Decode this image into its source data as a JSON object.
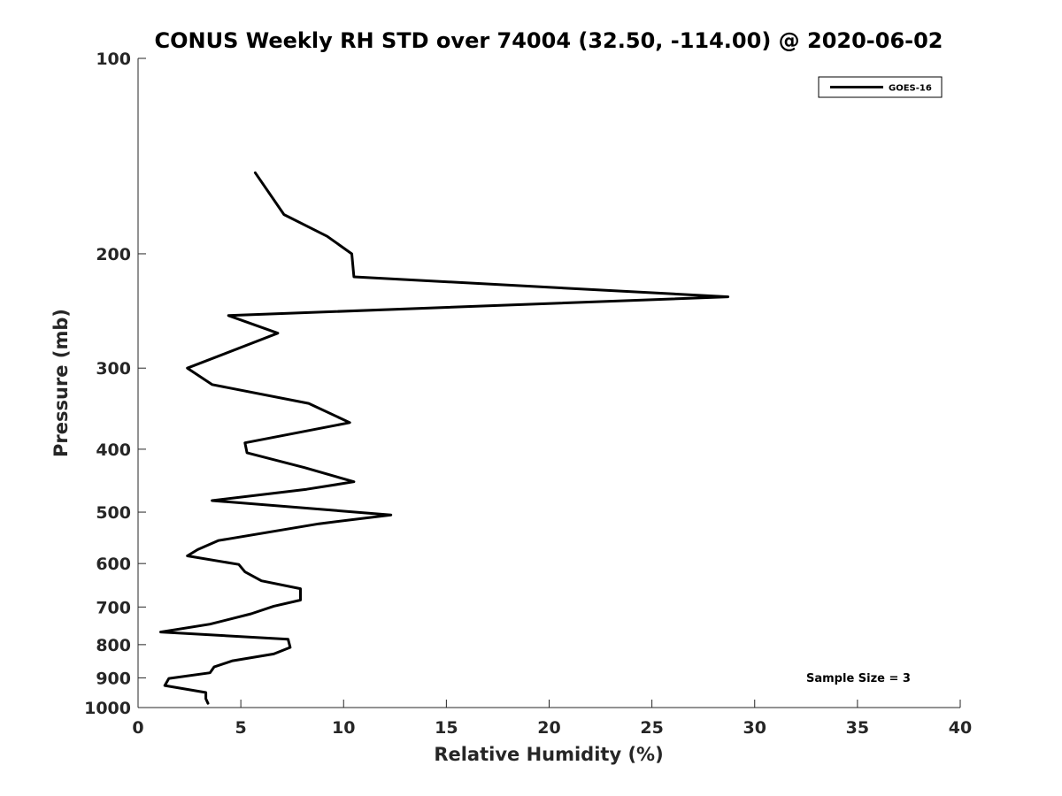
{
  "chart_data": {
    "type": "line",
    "title": "CONUS Weekly RH STD over 74004 (32.50, -114.00) @ 2020-06-02",
    "xlabel": "Relative Humidity (%)",
    "ylabel": "Pressure (mb)",
    "xlim": [
      0,
      40
    ],
    "ylim": [
      100,
      1000
    ],
    "y_scale": "log",
    "y_reversed": true,
    "x_ticks": [
      "0",
      "5",
      "10",
      "15",
      "20",
      "25",
      "30",
      "35",
      "40"
    ],
    "y_ticks": [
      "100",
      "200",
      "300",
      "400",
      "500",
      "600",
      "700",
      "800",
      "900",
      "1000"
    ],
    "grid": false,
    "legend_position": "top-right",
    "series": [
      {
        "name": "GOES-16",
        "color": "#000000",
        "x": [
          5.7,
          7.1,
          9.2,
          10.4,
          10.5,
          28.7,
          4.4,
          6.8,
          2.4,
          3.6,
          8.3,
          10.3,
          5.2,
          5.3,
          8.1,
          10.5,
          8.2,
          3.6,
          12.3,
          8.8,
          3.9,
          2.9,
          2.4,
          4.9,
          5.2,
          6.0,
          7.9,
          7.9,
          6.6,
          5.5,
          3.5,
          1.1,
          7.3,
          7.4,
          6.6,
          4.6,
          3.7,
          3.5,
          1.5,
          1.3,
          3.3,
          3.3,
          3.4
        ],
        "y": [
          150,
          174,
          188,
          200,
          217,
          233,
          249,
          265,
          300,
          318,
          340,
          364,
          391,
          405,
          427,
          449,
          461,
          480,
          505,
          521,
          553,
          571,
          584,
          602,
          618,
          638,
          656,
          683,
          698,
          717,
          744,
          765,
          785,
          808,
          827,
          847,
          866,
          884,
          902,
          925,
          948,
          969,
          985
        ]
      }
    ],
    "annotation": "Sample Size = 3"
  }
}
